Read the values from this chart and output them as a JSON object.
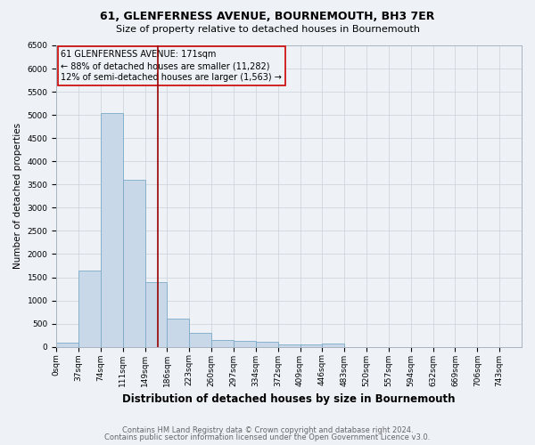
{
  "title": "61, GLENFERNESS AVENUE, BOURNEMOUTH, BH3 7ER",
  "subtitle": "Size of property relative to detached houses in Bournemouth",
  "xlabel": "Distribution of detached houses by size in Bournemouth",
  "ylabel": "Number of detached properties",
  "bin_labels": [
    "0sqm",
    "37sqm",
    "74sqm",
    "111sqm",
    "149sqm",
    "186sqm",
    "223sqm",
    "260sqm",
    "297sqm",
    "334sqm",
    "372sqm",
    "409sqm",
    "446sqm",
    "483sqm",
    "520sqm",
    "557sqm",
    "594sqm",
    "632sqm",
    "669sqm",
    "706sqm",
    "743sqm"
  ],
  "bar_heights": [
    80,
    1650,
    5050,
    3600,
    1400,
    600,
    300,
    155,
    130,
    100,
    55,
    45,
    65,
    0,
    0,
    0,
    0,
    0,
    0,
    0,
    0
  ],
  "bar_color": "#c8d8e8",
  "bar_edgecolor": "#7baac8",
  "vline_color": "#990000",
  "annotation_text": "61 GLENFERNESS AVENUE: 171sqm\n← 88% of detached houses are smaller (11,282)\n12% of semi-detached houses are larger (1,563) →",
  "annotation_box_color": "#cc0000",
  "ylim": [
    0,
    6500
  ],
  "yticks": [
    0,
    500,
    1000,
    1500,
    2000,
    2500,
    3000,
    3500,
    4000,
    4500,
    5000,
    5500,
    6000,
    6500
  ],
  "footer1": "Contains HM Land Registry data © Crown copyright and database right 2024.",
  "footer2": "Contains public sector information licensed under the Open Government Licence v3.0.",
  "background_color": "#eef2f7",
  "grid_color": "#c8d0da",
  "title_fontsize": 9,
  "subtitle_fontsize": 8,
  "ylabel_fontsize": 7.5,
  "xlabel_fontsize": 8.5,
  "tick_fontsize": 6.5,
  "annotation_fontsize": 7,
  "footer_fontsize": 6
}
